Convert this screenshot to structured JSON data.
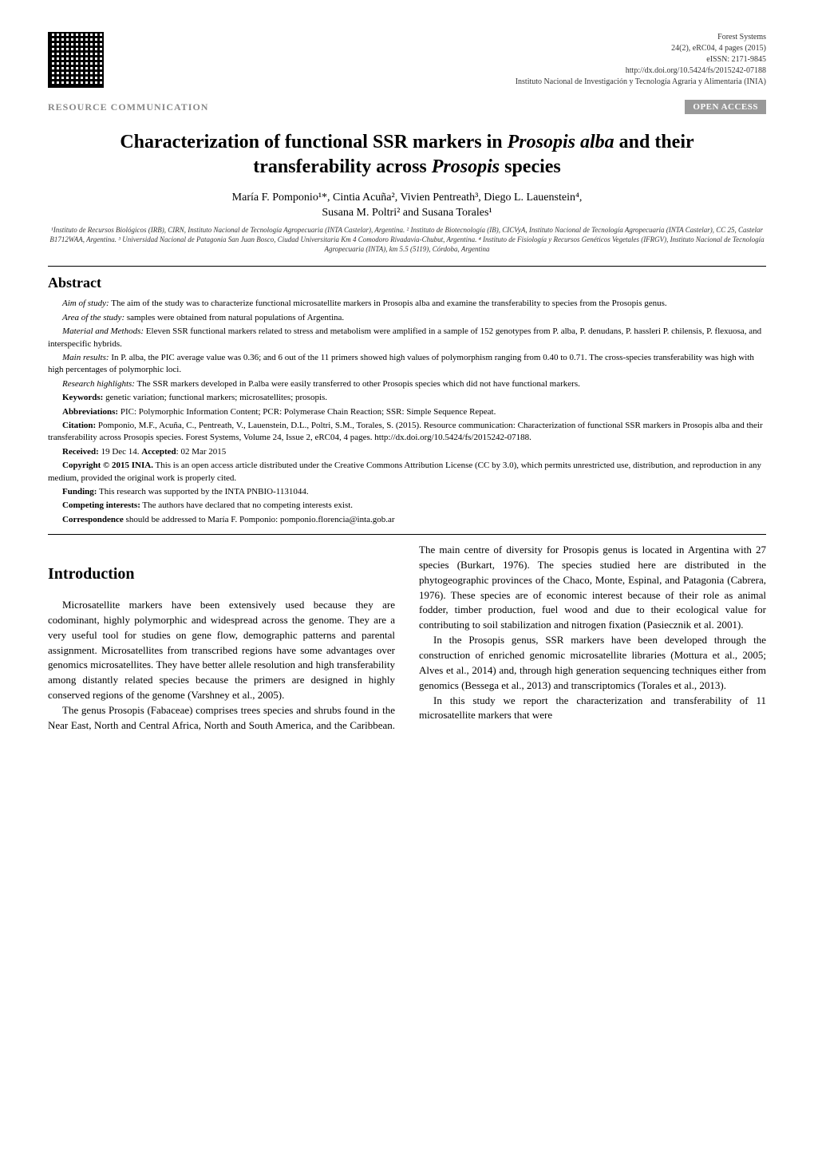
{
  "meta": {
    "journal": "Forest Systems",
    "volume_line": "24(2), eRC04, 4 pages (2015)",
    "eissn": "eISSN: 2171-9845",
    "doi": "http://dx.doi.org/10.5424/fs/2015242-07188",
    "publisher": "Instituto Nacional de Investigación y Tecnología Agraria y Alimentaria (INIA)"
  },
  "labels": {
    "resource": "RESOURCE COMMUNICATION",
    "open_access": "OPEN ACCESS"
  },
  "title_line1": "Characterization of functional SSR markers in ",
  "title_em1": "Prosopis alba",
  "title_line2": " and their transferability across ",
  "title_em2": "Prosopis",
  "title_line3": " species",
  "authors_line1": "María F. Pomponio¹*, Cintia Acuña², Vivien Pentreath³, Diego L. Lauenstein⁴,",
  "authors_line2": "Susana M. Poltri² and Susana Torales¹",
  "affiliations": "¹Instituto de Recursos Biológicos (IRB), CIRN, Instituto Nacional de Tecnología Agropecuaria (INTA Castelar), Argentina.   ² Instituto de Biotecnología (IB), CICVyA, Instituto Nacional de Tecnología Agropecuaria (INTA Castelar), CC 25, Castelar B1712WAA, Argentina.   ³ Universidad Nacional de Patagonia San Juan Bosco, Ciudad Universitaria Km 4 Comodoro Rivadavia-Chubut, Argentina.   ⁴ Instituto de Fisiología y Recursos Genéticos Vegetales (IFRGV), Instituto Nacional de Tecnología Agropecuaria (INTA), km 5.5 (5119), Córdoba, Argentina",
  "abstract": {
    "heading": "Abstract",
    "aim_label": "Aim of study:",
    "aim_text": " The aim of the study was to characterize functional microsatellite markers in Prosopis alba and examine the transferability to species from the Prosopis genus.",
    "area_label": "Area of the study:",
    "area_text": " samples were obtained from natural populations of Argentina.",
    "methods_label": "Material and Methods:",
    "methods_text": " Eleven SSR functional markers related to stress and metabolism were amplified in a sample of 152 genotypes from P. alba, P. denudans, P. hassleri P. chilensis, P. flexuosa, and interspecific hybrids.",
    "results_label": "Main results:",
    "results_text": " In P. alba, the PIC average value was 0.36; and 6 out of the 11 primers showed high values of polymorphism ranging from 0.40 to 0.71. The cross-species transferability was high with high percentages of polymorphic loci.",
    "highlights_label": "Research highlights:",
    "highlights_text": " The SSR markers developed in P.alba were easily transferred to other Prosopis species which did not have functional markers.",
    "keywords_label": "Keywords:",
    "keywords_text": " genetic variation; functional markers; microsatellites; prosopis.",
    "abbrev_label": "Abbreviations:",
    "abbrev_text": " PIC: Polymorphic Information Content; PCR: Polymerase Chain Reaction; SSR: Simple Sequence Repeat.",
    "citation_label": "Citation:",
    "citation_text": " Pomponio, M.F., Acuña, C., Pentreath, V., Lauenstein, D.L., Poltri, S.M., Torales, S. (2015). Resource communication: Characterization of functional SSR markers in Prosopis alba and their transferability across Prosopis species. Forest Systems, Volume 24, Issue 2, eRC04, 4 pages. http://dx.doi.org/10.5424/fs/2015242-07188.",
    "received_label": "Received:",
    "received_text": " 19 Dec 14. ",
    "accepted_label": "Accepted",
    "accepted_text": ": 02 Mar 2015",
    "copyright_label": "Copyright © 2015 INIA.",
    "copyright_text": " This is an open access article distributed under the Creative Commons Attribution License (CC by 3.0), which permits unrestricted use, distribution, and reproduction in any medium, provided the original work is properly cited.",
    "funding_label": "Funding:",
    "funding_text": " This research was supported by the INTA PNBIO-1131044.",
    "competing_label": "Competing interests:",
    "competing_text": " The authors have declared that no competing interests exist.",
    "correspondence_label": "Correspondence",
    "correspondence_text": " should be addressed to María F. Pomponio: pomponio.florencia@inta.gob.ar"
  },
  "intro": {
    "heading": "Introduction",
    "p1": "Microsatellite markers have been extensively used because they are codominant, highly polymorphic and widespread across the genome. They are a very useful tool for studies on gene flow, demographic patterns and parental assignment. Microsatellites from transcribed regions have some advantages over genomics microsatellites. They have better allele resolution and high transferability among distantly related species because the primers are designed in highly conserved regions of the genome (Varshney et al., 2005).",
    "p2": "The genus Prosopis (Fabaceae) comprises trees species and shrubs found in the Near East, North and Central Africa, North and South America, and the Caribbean. The main centre of diversity for Prosopis genus is located in Argentina with 27 species (Burkart, 1976). The species studied here are distributed in the phytogeographic provinces of the Chaco, Monte, Espinal, and Patagonia (Cabrera, 1976). These species are of economic interest because of their role as animal fodder, timber production, fuel wood and due to their ecological value for contributing to soil stabilization and nitrogen fixation (Pasiecznik et al. 2001).",
    "p3": "In the Prosopis genus, SSR markers have been developed through the construction of enriched genomic microsatellite libraries (Mottura et al., 2005; Alves et al., 2014) and, through high generation sequencing techniques either from genomics (Bessega et al., 2013) and transcriptomics (Torales et al., 2013).",
    "p4": "In this study we report the characterization and transferability of 11 microsatellite markers that were"
  },
  "style": {
    "bg": "#ffffff",
    "text": "#000000",
    "badge_bg": "#999999",
    "badge_fg": "#ffffff",
    "resource_color": "#888888",
    "title_fontsize": 24,
    "body_fontsize": 13,
    "abstract_fontsize": 11,
    "meta_fontsize": 10
  }
}
